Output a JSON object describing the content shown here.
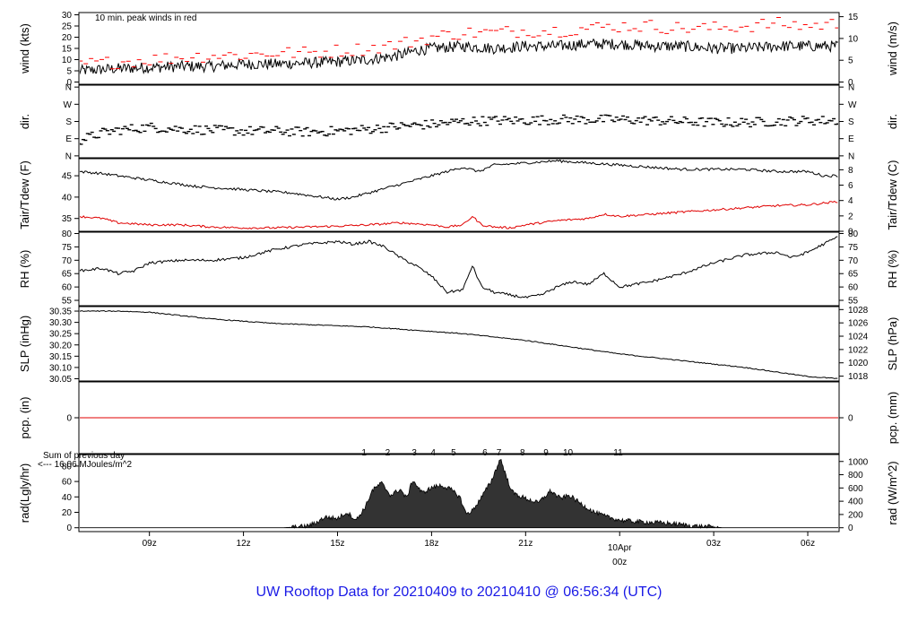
{
  "footer_title": "UW Rooftop Data for 20210409  to  20210410 @ 06:56:34  (UTC)",
  "colors": {
    "frame": "#000000",
    "series": "#000000",
    "peak": "#ff0000",
    "dew": "#e00000",
    "pcp_line": "#e00000",
    "rad_fill": "#333333",
    "markers": "#9933cc",
    "footer": "#1a1ae6"
  },
  "x_axis": {
    "ticks": [
      "09z",
      "12z",
      "15z",
      "18z",
      "21z",
      "00z",
      "03z",
      "06z"
    ],
    "hours": [
      9,
      12,
      15,
      18,
      21,
      24,
      27,
      30
    ],
    "date_label": "10Apr",
    "date_hour": 24,
    "range_hours": [
      6.75,
      31.0
    ],
    "highlight_tick": "00z"
  },
  "chart_data": [
    {
      "type": "line",
      "name": "wind",
      "ylabel": "wind (kts)",
      "ylabel_right": "wind (m/s)",
      "ylim": [
        -1,
        31
      ],
      "yticks": [
        0,
        5,
        10,
        15,
        20,
        25,
        30
      ],
      "right_ticks": [
        0,
        5,
        10,
        15
      ],
      "right_factor": 1.9438,
      "annotation": "10 min. peak winds in red",
      "series": [
        {
          "label": "wind",
          "hours": [
            6.75,
            8,
            9,
            10,
            11,
            12,
            13,
            14,
            15,
            16,
            17,
            17.5,
            18,
            19,
            20,
            21,
            22,
            23,
            24,
            25,
            26,
            27,
            28,
            29,
            30,
            31
          ],
          "values": [
            5,
            6,
            6.5,
            7,
            7,
            8,
            8,
            8.5,
            9,
            10,
            12,
            14,
            15,
            16,
            15,
            16,
            16,
            17,
            17,
            16,
            16,
            15,
            15,
            16,
            16,
            16
          ],
          "noise": 2.5
        },
        {
          "label": "peak",
          "hours": [
            7,
            8,
            9,
            10,
            11,
            12,
            13,
            14,
            15,
            16,
            17,
            18,
            19,
            20,
            21,
            22,
            23,
            24,
            25,
            26,
            27,
            28,
            29,
            30,
            31
          ],
          "values": [
            8,
            9,
            10,
            11,
            12,
            12,
            13,
            13,
            14,
            15,
            17,
            20,
            22,
            22,
            23,
            23,
            24,
            25,
            25,
            24,
            24,
            25,
            26,
            25,
            26
          ],
          "noise": 3
        }
      ]
    },
    {
      "type": "scatter",
      "name": "dir",
      "ylabel": "dir.",
      "ylabel_right": "dir.",
      "ylim": [
        -10,
        370
      ],
      "yticks": [
        0,
        90,
        180,
        270,
        360
      ],
      "tick_labels": [
        "N",
        "E",
        "S",
        "W",
        "N"
      ],
      "series": [
        {
          "label": "dir",
          "hours": [
            6.75,
            7.5,
            8,
            9,
            10,
            11,
            12,
            13,
            14,
            15,
            16,
            17,
            18,
            19,
            20,
            21,
            22,
            23,
            24,
            25,
            26,
            27,
            28,
            29,
            30,
            31
          ],
          "values": [
            80,
            120,
            135,
            150,
            140,
            135,
            130,
            130,
            125,
            130,
            140,
            155,
            165,
            180,
            185,
            185,
            190,
            190,
            190,
            185,
            180,
            175,
            175,
            180,
            185,
            185
          ],
          "noise": 25
        }
      ]
    },
    {
      "type": "line",
      "name": "temp",
      "ylabel": "Tair/Tdew (F)",
      "ylabel_right": "Tair/Tdew (C)",
      "ylim": [
        32,
        49
      ],
      "yticks": [
        35,
        40,
        45
      ],
      "right_ticks": [
        0,
        2,
        4,
        6,
        8
      ],
      "right_mode": "f_to_c",
      "series": [
        {
          "label": "Tair",
          "hours": [
            6.75,
            7.5,
            8.5,
            9.5,
            10.5,
            11.5,
            12.5,
            13.5,
            14.5,
            15,
            15.5,
            16.5,
            17.5,
            18.5,
            19,
            19.5,
            20,
            21,
            22,
            23,
            24,
            25,
            26,
            27,
            28,
            29,
            30,
            30.5,
            31
          ],
          "values": [
            46,
            45.5,
            44.5,
            43.5,
            42.5,
            42,
            41.5,
            41,
            40,
            39.5,
            40,
            42,
            44,
            46,
            47,
            46,
            47.5,
            48,
            48.5,
            48,
            47.5,
            47,
            46.5,
            46.5,
            46.5,
            46,
            46,
            45,
            45
          ],
          "noise": 0.3
        },
        {
          "label": "Tdew",
          "hours": [
            6.75,
            7.5,
            8,
            9,
            10,
            11,
            12,
            13,
            14,
            15,
            16,
            17,
            18,
            18.5,
            19,
            19.3,
            19.6,
            20,
            20.5,
            21,
            22,
            23,
            23.5,
            24,
            25,
            26,
            27,
            28,
            29,
            30,
            31
          ],
          "values": [
            35.5,
            35,
            34,
            33.5,
            33.5,
            33,
            32.8,
            32.8,
            33,
            33.2,
            33.5,
            34,
            33.5,
            33,
            33.5,
            35.5,
            33.5,
            33,
            32.8,
            33.5,
            34.5,
            35,
            36,
            35.5,
            36,
            36.5,
            37,
            37.5,
            38,
            38.2,
            39
          ],
          "noise": 0.25
        }
      ]
    },
    {
      "type": "line",
      "name": "rh",
      "ylabel": "RH (%)",
      "ylabel_right": "RH (%)",
      "ylim": [
        53,
        80.5
      ],
      "yticks": [
        55,
        60,
        65,
        70,
        75,
        80
      ],
      "right_ticks": [
        55,
        60,
        65,
        70,
        75,
        80
      ],
      "series": [
        {
          "label": "RH",
          "hours": [
            6.75,
            7.5,
            8,
            8.5,
            9,
            10,
            11,
            12,
            13,
            14,
            15,
            15.5,
            16,
            16.5,
            17,
            17.5,
            18,
            18.5,
            19,
            19.3,
            19.6,
            20,
            21,
            21.5,
            22,
            22.5,
            23,
            23.5,
            24,
            25,
            26,
            27,
            28,
            29,
            29.5,
            30,
            30.5,
            31
          ],
          "values": [
            66,
            67,
            65,
            66,
            69,
            70,
            70,
            71,
            74,
            76,
            77,
            76,
            77,
            75,
            71,
            68,
            64,
            58,
            59,
            68,
            60,
            58,
            56,
            57,
            60,
            62,
            61,
            65,
            60,
            62,
            65,
            69,
            72,
            73,
            71,
            73,
            76,
            79
          ],
          "noise": 0.5
        }
      ]
    },
    {
      "type": "line",
      "name": "slp",
      "ylabel": "SLP (inHg)",
      "ylabel_right": "SLP (hPa)",
      "ylim": [
        30.04,
        30.37
      ],
      "yticks": [
        30.05,
        30.1,
        30.15,
        30.2,
        30.25,
        30.3,
        30.35
      ],
      "right_ticks": [
        1018,
        1020,
        1022,
        1024,
        1026,
        1028
      ],
      "right_mode": "inhg_to_hpa",
      "series": [
        {
          "label": "SLP",
          "hours": [
            6.75,
            8,
            9,
            10,
            11,
            12,
            13,
            14,
            15,
            16,
            17,
            18,
            19,
            20,
            21,
            22,
            23,
            24,
            25,
            26,
            27,
            28,
            29,
            30,
            31
          ],
          "values": [
            30.35,
            30.35,
            30.345,
            30.33,
            30.315,
            30.305,
            30.295,
            30.29,
            30.285,
            30.28,
            30.27,
            30.26,
            30.25,
            30.235,
            30.22,
            30.2,
            30.18,
            30.16,
            30.145,
            30.13,
            30.115,
            30.1,
            30.08,
            30.06,
            30.05
          ],
          "noise": 0.002
        }
      ]
    },
    {
      "type": "line",
      "name": "pcp",
      "ylabel": "pcp. (in)",
      "ylabel_right": "pcp. (mm)",
      "ylim": [
        -1,
        1
      ],
      "yticks": [
        0
      ],
      "right_ticks": [
        0
      ],
      "series": [
        {
          "label": "pcp",
          "hours": [
            6.75,
            31
          ],
          "values": [
            0,
            0
          ],
          "noise": 0
        }
      ]
    },
    {
      "type": "area",
      "name": "rad",
      "ylabel": "rad(Lgly/hr)",
      "ylabel_right": "rad (W/m^2)",
      "ylim": [
        -5,
        95
      ],
      "yticks": [
        0,
        20,
        40,
        60,
        80
      ],
      "right_ticks": [
        0,
        200,
        400,
        600,
        800,
        1000
      ],
      "right_factor": 11.63,
      "note_lines": [
        "Sum of previous day",
        "<--- 16.06 MJoules/m^2"
      ],
      "markers": [
        "1",
        "2",
        "3",
        "4",
        "5",
        "6",
        "7",
        "8",
        "9",
        "10",
        "11"
      ],
      "marker_hours": [
        15.85,
        16.6,
        17.45,
        18.05,
        18.7,
        19.7,
        20.15,
        20.9,
        21.65,
        22.35,
        23.95
      ],
      "series": [
        {
          "label": "rad",
          "hours": [
            6.75,
            13.2,
            13.5,
            14,
            14.3,
            14.6,
            15,
            15.3,
            15.6,
            15.9,
            16.1,
            16.4,
            16.7,
            17,
            17.2,
            17.4,
            17.7,
            18,
            18.3,
            18.6,
            18.9,
            19.1,
            19.3,
            19.6,
            19.9,
            20.1,
            20.2,
            20.4,
            20.6,
            21,
            21.4,
            21.8,
            22.1,
            22.4,
            22.8,
            23.2,
            23.6,
            24,
            24.5,
            25,
            25.5,
            26,
            26.5,
            27,
            27.3,
            31
          ],
          "values": [
            0,
            0,
            0.5,
            2,
            6,
            14,
            12,
            20,
            10,
            28,
            48,
            58,
            42,
            50,
            38,
            62,
            45,
            52,
            55,
            50,
            40,
            18,
            22,
            40,
            60,
            80,
            90,
            64,
            45,
            38,
            32,
            48,
            38,
            42,
            30,
            20,
            14,
            10,
            8,
            7,
            6,
            4,
            2,
            1,
            0,
            0
          ],
          "noise": 3
        }
      ]
    }
  ]
}
